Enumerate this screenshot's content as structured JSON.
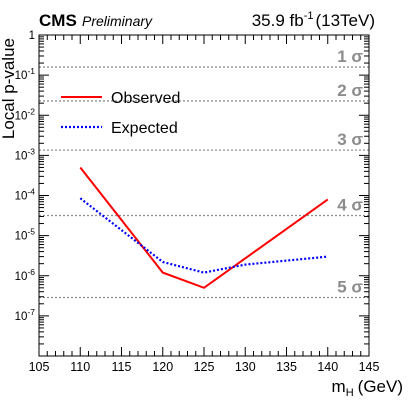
{
  "chart_data": {
    "type": "line",
    "header": {
      "experiment": "CMS",
      "status": "Preliminary",
      "lumi_value": "35.9 fb",
      "lumi_exp": "-1",
      "lumi_energy": "(13TeV)"
    },
    "ylabel": "Local p-value",
    "xlabel": {
      "main": "m",
      "sub": "H",
      "unit": "(GeV)"
    },
    "xlim": [
      105,
      145
    ],
    "xticks": [
      105,
      110,
      115,
      120,
      125,
      130,
      135,
      140,
      145
    ],
    "x_minor_step": 1,
    "ylim": [
      1e-08,
      1
    ],
    "yscale": "log",
    "yticks": [
      {
        "exp": 0,
        "label": "1"
      },
      {
        "exp": -1,
        "label": "10-1"
      },
      {
        "exp": -2,
        "label": "10-2"
      },
      {
        "exp": -3,
        "label": "10-3"
      },
      {
        "exp": -4,
        "label": "10-4"
      },
      {
        "exp": -5,
        "label": "10-5"
      },
      {
        "exp": -6,
        "label": "10-6"
      },
      {
        "exp": -7,
        "label": "10-7"
      }
    ],
    "sigma_lines": [
      {
        "label": "1 σ",
        "p": 0.1587
      },
      {
        "label": "2 σ",
        "p": 0.02275
      },
      {
        "label": "3 σ",
        "p": 0.00135
      },
      {
        "label": "4 σ",
        "p": 3.17e-05
      },
      {
        "label": "5 σ",
        "p": 2.87e-07
      }
    ],
    "series": [
      {
        "name": "Observed",
        "color": "#ff0000",
        "style": "solid",
        "x": [
          110,
          120,
          125,
          140
        ],
        "y": [
          0.0005,
          1.2e-06,
          5e-07,
          8e-05
        ]
      },
      {
        "name": "Expected",
        "color": "#0000ff",
        "style": "dotted",
        "x": [
          110,
          120,
          125,
          130,
          140
        ],
        "y": [
          8.5e-05,
          2.2e-06,
          1.2e-06,
          1.9e-06,
          3e-06
        ]
      }
    ],
    "legend_position": "top-left",
    "grid": false
  }
}
